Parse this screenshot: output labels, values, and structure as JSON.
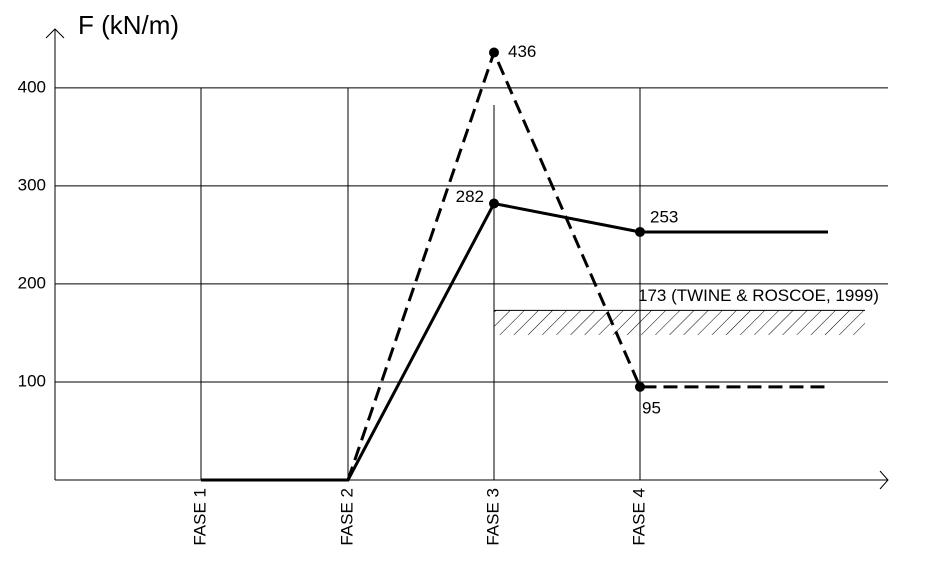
{
  "chart_data": {
    "type": "line",
    "y_label": "F (kN/m)",
    "categories": [
      "FASE 1",
      "FASE 2",
      "FASE 3",
      "FASE 4",
      null
    ],
    "series": [
      {
        "name": null,
        "color": "#000000",
        "dash": false,
        "values": [
          0,
          0,
          282,
          253,
          253
        ]
      },
      {
        "name": null,
        "color": "#000000",
        "dash": true,
        "values": [
          0,
          0,
          436,
          95,
          95
        ]
      }
    ],
    "labeled_points": [
      2,
      3
    ],
    "ylim": [
      0,
      460
    ],
    "yticks": [
      100,
      200,
      300,
      400
    ],
    "grid": true,
    "reference": {
      "label": "173 (TWINE & ROSCOE, 1999)",
      "value": 173,
      "lower": 148
    }
  }
}
